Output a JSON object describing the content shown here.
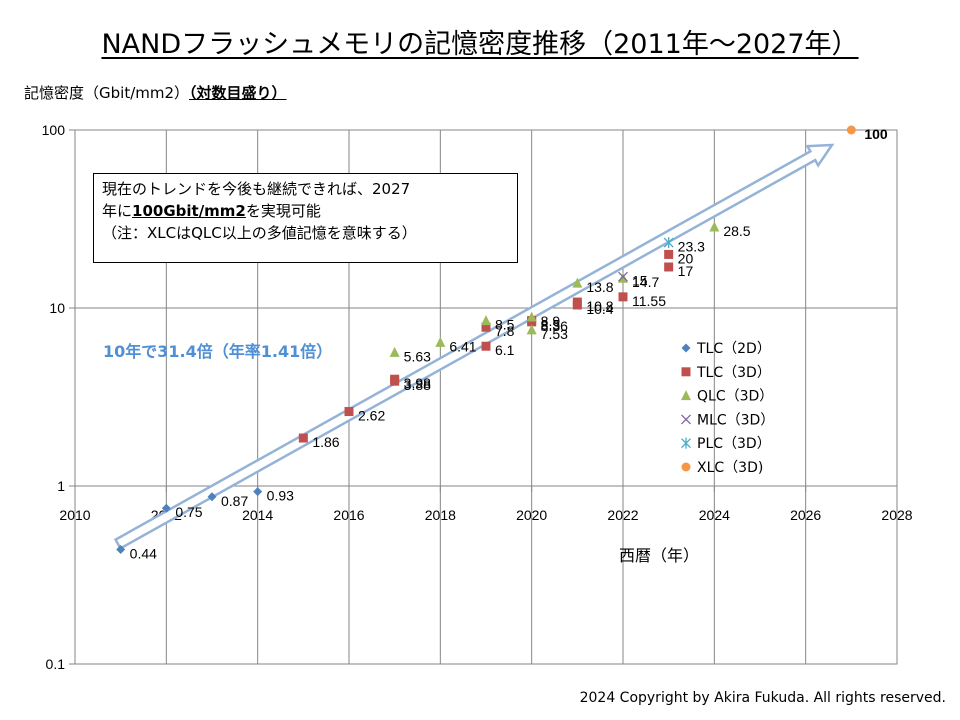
{
  "chart_data": {
    "type": "scatter",
    "title": "NANDフラッシュメモリの記憶密度推移（2011年～2027年）",
    "ylabel": "記憶密度（Gbit/mm2）",
    "ylabel_note": "（対数目盛り）",
    "xlabel": "西暦（年）",
    "xlim": [
      2010,
      2028
    ],
    "ylim": [
      0.1,
      100
    ],
    "yscale": "log",
    "x_ticks": [
      "2010",
      "2012",
      "2014",
      "2016",
      "2018",
      "2020",
      "2022",
      "2024",
      "2026",
      "2028"
    ],
    "y_ticks": [
      "0.1",
      "1",
      "10",
      "100"
    ],
    "grid": "vertical and horizontal",
    "legend_position": "right",
    "series": [
      {
        "name": "TLC（2D）",
        "marker": "diamond",
        "color": "#4f81bd",
        "points": [
          {
            "x": 2011,
            "y": 0.44,
            "label": "0.44"
          },
          {
            "x": 2012,
            "y": 0.75,
            "label": "0.75"
          },
          {
            "x": 2013,
            "y": 0.87,
            "label": "0.87"
          },
          {
            "x": 2014,
            "y": 0.93,
            "label": "0.93"
          }
        ]
      },
      {
        "name": "TLC（3D）",
        "marker": "square",
        "color": "#c0504d",
        "points": [
          {
            "x": 2015,
            "y": 1.86,
            "label": "1.86"
          },
          {
            "x": 2016,
            "y": 2.62,
            "label": "2.62"
          },
          {
            "x": 2017,
            "y": 3.98,
            "label": "3.98"
          },
          {
            "x": 2017,
            "y": 3.88,
            "label": "3.88"
          },
          {
            "x": 2019,
            "y": 7.8,
            "label": "7.8"
          },
          {
            "x": 2019,
            "y": 6.1,
            "label": "6.1"
          },
          {
            "x": 2020,
            "y": 8.36,
            "label": "8.36"
          },
          {
            "x": 2020,
            "y": 8.5,
            "label": "8.5"
          },
          {
            "x": 2021,
            "y": 10.8,
            "label": "10.8"
          },
          {
            "x": 2021,
            "y": 10.4,
            "label": "10.4"
          },
          {
            "x": 2022,
            "y": 11.55,
            "label": "11.55"
          },
          {
            "x": 2023,
            "y": 20,
            "label": "20"
          },
          {
            "x": 2023,
            "y": 17,
            "label": "17"
          }
        ]
      },
      {
        "name": "QLC（3D）",
        "marker": "triangle",
        "color": "#9bbb59",
        "points": [
          {
            "x": 2017,
            "y": 5.63,
            "label": "5.63"
          },
          {
            "x": 2018,
            "y": 6.41,
            "label": "6.41"
          },
          {
            "x": 2019,
            "y": 8.5,
            "label": "8.5"
          },
          {
            "x": 2020,
            "y": 8.9,
            "label": "8.9"
          },
          {
            "x": 2020,
            "y": 7.53,
            "label": "7.53"
          },
          {
            "x": 2021,
            "y": 13.8,
            "label": "13.8"
          },
          {
            "x": 2022,
            "y": 14.7,
            "label": "14.7"
          },
          {
            "x": 2024,
            "y": 28.5,
            "label": "28.5"
          }
        ]
      },
      {
        "name": "MLC（3D）",
        "marker": "x",
        "color": "#8064a2",
        "points": [
          {
            "x": 2022,
            "y": 15,
            "label": "15"
          }
        ]
      },
      {
        "name": "PLC（3D）",
        "marker": "star",
        "color": "#4bacc6",
        "points": [
          {
            "x": 2023,
            "y": 23.3,
            "label": "23.3"
          }
        ]
      },
      {
        "name": "XLC（3D)",
        "marker": "circle",
        "color": "#f79646",
        "points": [
          {
            "x": 2027,
            "y": 100,
            "label": "100"
          }
        ]
      }
    ],
    "annotations": {
      "note_line1": "現在のトレンドを今後も継続できれば、2027",
      "note_line2_pre": "年に",
      "note_line2_bold": "100Gbit/mm2",
      "note_line2_post": "を実現可能",
      "note_line3": "（注：XLCはQLC以上の多値記憶を意味する）",
      "trend_label": "10年で31.4倍（年率1.41倍）"
    }
  },
  "footer": {
    "copyright": "2024 Copyright by Akira Fukuda. All rights reserved."
  }
}
